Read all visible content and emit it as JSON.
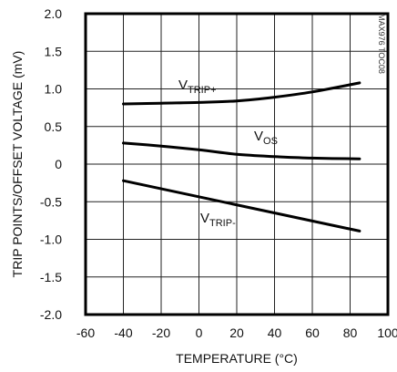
{
  "chart_data": {
    "type": "line",
    "title": "",
    "xlabel": "TEMPERATURE (°C)",
    "ylabel": "TRIP POINTS/OFFSET VOLTAGE (mV)",
    "xlim": [
      -60,
      100
    ],
    "ylim": [
      -2.0,
      2.0
    ],
    "x_ticks": [
      -60,
      -40,
      -20,
      0,
      20,
      40,
      60,
      80,
      100
    ],
    "y_ticks": [
      2.0,
      1.5,
      1.0,
      0.5,
      0,
      -0.5,
      -1.0,
      -1.5,
      -2.0
    ],
    "x_tick_labels": [
      "-60",
      "-40",
      "-20",
      "0",
      "20",
      "40",
      "60",
      "80",
      "100"
    ],
    "y_tick_labels": [
      "2.0",
      "1.5",
      "1.0",
      "0.5",
      "0",
      "-0.5",
      "-1.0",
      "-1.5",
      "-2.0"
    ],
    "grid": true,
    "series": [
      {
        "name": "VTRIP+",
        "label_main": "V",
        "label_sub": "TRIP+",
        "x": [
          -40,
          -20,
          0,
          20,
          40,
          60,
          85
        ],
        "values": [
          0.8,
          0.81,
          0.82,
          0.84,
          0.89,
          0.96,
          1.08
        ]
      },
      {
        "name": "VOS",
        "label_main": "V",
        "label_sub": "OS",
        "x": [
          -40,
          -20,
          0,
          20,
          40,
          60,
          85
        ],
        "values": [
          0.28,
          0.24,
          0.19,
          0.13,
          0.1,
          0.08,
          0.07
        ]
      },
      {
        "name": "VTRIP-",
        "label_main": "V",
        "label_sub": "TRIP-",
        "x": [
          -40,
          85
        ],
        "values": [
          -0.22,
          -0.89
        ]
      }
    ],
    "watermark": "MAX976 TOC08"
  }
}
